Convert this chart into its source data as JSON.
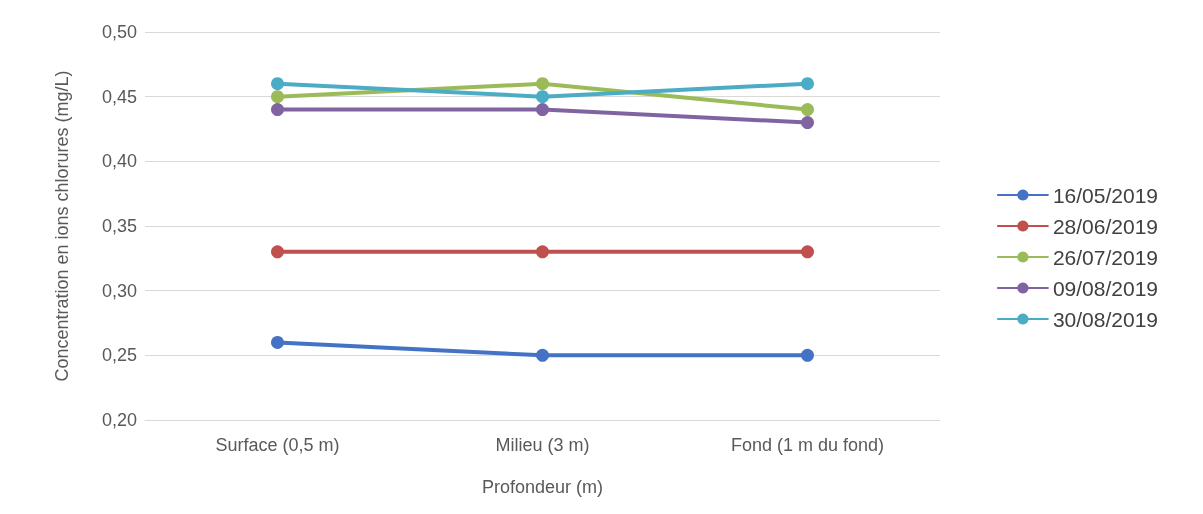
{
  "chart_data": {
    "type": "line",
    "xlabel": "Profondeur (m)",
    "ylabel": "Concentration en ions chlorures (mg/L)",
    "categories": [
      "Surface (0,5 m)",
      "Milieu (3 m)",
      "Fond (1 m du fond)"
    ],
    "series": [
      {
        "name": "16/05/2019",
        "color": "#4472c4",
        "values": [
          0.26,
          0.25,
          0.25
        ]
      },
      {
        "name": "28/06/2019",
        "color": "#c0504d",
        "values": [
          0.33,
          0.33,
          0.33
        ]
      },
      {
        "name": "26/07/2019",
        "color": "#9bbb59",
        "values": [
          0.45,
          0.46,
          0.44
        ]
      },
      {
        "name": "09/08/2019",
        "color": "#8064a2",
        "values": [
          0.44,
          0.44,
          0.43
        ]
      },
      {
        "name": "30/08/2019",
        "color": "#4bacc6",
        "values": [
          0.46,
          0.45,
          0.46
        ]
      }
    ],
    "ylim": [
      0.2,
      0.5
    ],
    "yticks": [
      {
        "value": 0.2,
        "label": "0,20"
      },
      {
        "value": 0.25,
        "label": "0,25"
      },
      {
        "value": 0.3,
        "label": "0,30"
      },
      {
        "value": 0.35,
        "label": "0,35"
      },
      {
        "value": 0.4,
        "label": "0,40"
      },
      {
        "value": 0.45,
        "label": "0,45"
      },
      {
        "value": 0.5,
        "label": "0,50"
      }
    ],
    "grid": "y",
    "legend": "right",
    "marker": "circle",
    "line_style": "solid"
  }
}
